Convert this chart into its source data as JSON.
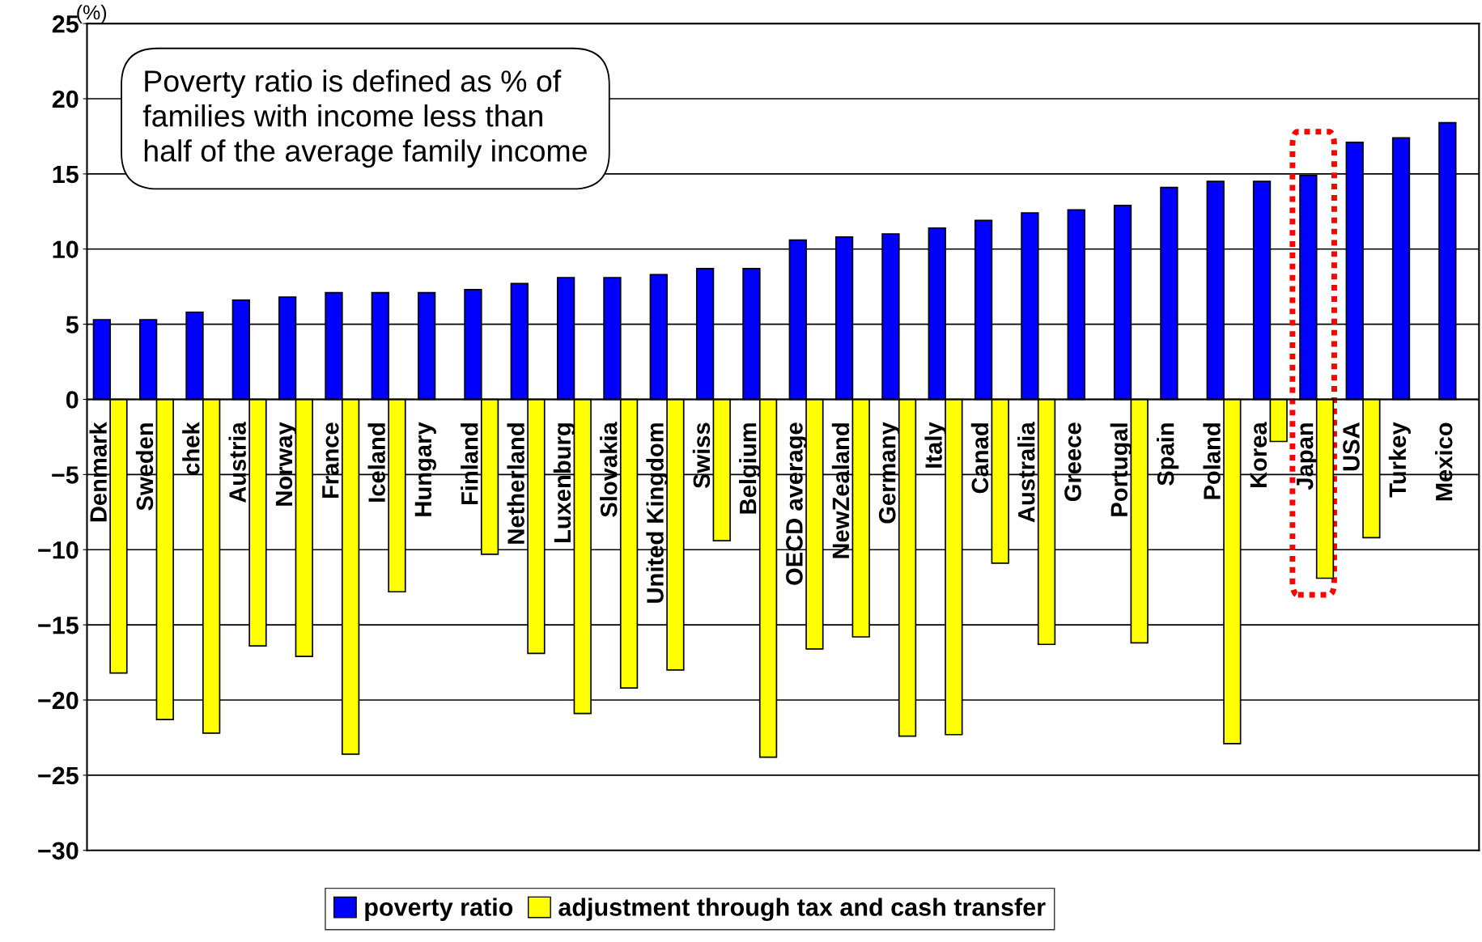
{
  "chart_data": {
    "type": "bar",
    "ylabel": "(%)",
    "categories": [
      "Denmark",
      "Sweden",
      "chek",
      "Austria",
      "Norway",
      "France",
      "Iceland",
      "Hungary",
      "Finland",
      "Netherland",
      "Luxenburg",
      "Slovakia",
      "United Kingdom",
      "Swiss",
      "Belgium",
      "OECD average",
      "NewZealand",
      "Germany",
      "Italy",
      "Canad",
      "Australia",
      "Greece",
      "Portugal",
      "Spain",
      "Poland",
      "Korea",
      "Japan",
      "USA",
      "Turkey",
      "Mexico"
    ],
    "series": [
      {
        "name": "poverty ratio",
        "color": "#0000ff",
        "values": [
          5.3,
          5.3,
          5.8,
          6.6,
          6.8,
          7.1,
          7.1,
          7.1,
          7.3,
          7.7,
          8.1,
          8.1,
          8.3,
          8.7,
          8.7,
          10.6,
          10.8,
          11.0,
          11.4,
          11.9,
          12.4,
          12.6,
          12.9,
          14.1,
          14.5,
          14.5,
          14.9,
          17.1,
          17.4,
          18.4
        ]
      },
      {
        "name": "adjustment through tax and cash transfer",
        "color": "#ffff00",
        "values": [
          -18.2,
          -21.3,
          -22.2,
          -16.4,
          -17.1,
          -23.6,
          -12.8,
          null,
          -10.3,
          -16.9,
          -20.9,
          -19.2,
          -18.0,
          -9.4,
          -23.8,
          -16.6,
          -15.8,
          -22.4,
          -22.3,
          -10.9,
          -16.3,
          null,
          -16.2,
          null,
          -22.9,
          -2.8,
          -11.9,
          -9.2,
          null,
          null
        ]
      }
    ],
    "ylim": [
      -30,
      25
    ],
    "yticks": [
      {
        "value": -30,
        "label": "−30"
      },
      {
        "value": -25,
        "label": "−25"
      },
      {
        "value": -20,
        "label": "−20"
      },
      {
        "value": -15,
        "label": "−15"
      },
      {
        "value": -10,
        "label": "−10"
      },
      {
        "value": -5,
        "label": "−5"
      },
      0,
      5,
      10,
      15,
      20,
      25
    ],
    "grid": "y",
    "legend": "bottom",
    "annotations": [
      "Poverty ratio is defined as % of\nfamilies with income less than\nhalf of the average family income"
    ]
  }
}
